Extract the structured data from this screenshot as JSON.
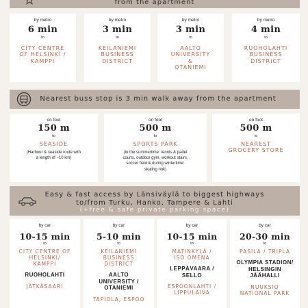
{
  "top_banner": {
    "text": "from the apartment"
  },
  "metro": [
    {
      "mode": "by metro",
      "time": "6 min",
      "to": "to",
      "dest": [
        "CITY CENTRE",
        "OF HELSINKI /",
        "KAMPPI"
      ]
    },
    {
      "mode": "by metro",
      "time": "3 min",
      "to": "to",
      "dest": [
        "KEILANIEMI",
        "BUSINESS",
        "DISTRICT"
      ]
    },
    {
      "mode": "by metro",
      "time": "3 min",
      "to": "to",
      "dest": [
        "AALTO",
        "UNIVERSITY",
        "&",
        "OTANIEMI"
      ]
    },
    {
      "mode": "by metro",
      "time": "4 min",
      "to": "to",
      "dest": [
        "RUOHOLAHTI",
        "BUSINESS",
        "DISTRICT"
      ]
    }
  ],
  "bus_banner": {
    "text": "Nearest buss stop is 3 min walk away from the apartment",
    "icon": "bus-wheel-icon"
  },
  "foot": [
    {
      "mode": "on foot",
      "time": "150 m",
      "to": "to",
      "dest": [
        "SEASIDE"
      ],
      "note": [
        "(Harbour & seaside route with",
        "a length of ~10 km)"
      ]
    },
    {
      "mode": "on foot",
      "time": "500 m",
      "to": "to",
      "dest": [
        "SPORTS PARK"
      ],
      "note": [
        "(in the summertime: tennis & padel",
        "courts, outdoor gym, workout stairs,",
        "soccer field & during wintertime:",
        "skating rink)"
      ]
    },
    {
      "mode": "on foot",
      "time": "500 m",
      "to": "to",
      "dest": [
        "NEAREST",
        "GROCERY STORE"
      ],
      "note": []
    }
  ],
  "car_banner": {
    "line1": "Easy & fast access by Länsiväylä to biggest highways",
    "line2": "to/from Turku, Hanko, Tampere & Lahti",
    "line3": "(+free & safe private parking space)",
    "icon": "car-icon"
  },
  "car": [
    {
      "mode": "by car",
      "time": "10-15 min",
      "to": "to",
      "groups": [
        {
          "style": "dest",
          "lines": [
            "CITY CENTRE OF",
            "HELSINKI/",
            "KAMPPI"
          ]
        },
        {
          "style": "black",
          "lines": [
            "RUOHOLAHTI"
          ]
        },
        {
          "style": "dest",
          "lines": [
            "JÄTKÄSAARI"
          ]
        }
      ]
    },
    {
      "mode": "by car",
      "time": "5-10 min",
      "to": "to",
      "groups": [
        {
          "style": "dest",
          "lines": [
            "KEILANIEMI",
            "BUSINESS",
            "DISTRICT"
          ]
        },
        {
          "style": "black",
          "lines": [
            "AALTO",
            "UNIVERSITY /",
            "OTANIEMI"
          ]
        },
        {
          "style": "dest",
          "lines": [
            "TAPIOLA, ESPOO"
          ]
        }
      ]
    },
    {
      "mode": "by car",
      "time": "10-15 min",
      "to": "to",
      "groups": [
        {
          "style": "dest",
          "lines": [
            "MATINKYLÄ /",
            "ISO OMENA"
          ]
        },
        {
          "style": "black",
          "lines": [
            "LEPPÄVAARA /",
            "SELLO"
          ]
        },
        {
          "style": "dest",
          "lines": [
            "ESPOONLAHTI /",
            "LIPPULAIVA"
          ]
        }
      ]
    },
    {
      "mode": "by car",
      "time": "20-30 min",
      "to": "to",
      "groups": [
        {
          "style": "dest",
          "lines": [
            "PASILA / TRIPLA"
          ]
        },
        {
          "style": "black",
          "lines": [
            "OLYMPIA STADION/",
            "HELSINGIN",
            "JÄÄHALLI"
          ]
        },
        {
          "style": "dest",
          "lines": [
            "NUUKSIO",
            "NATIONAL PARK"
          ]
        }
      ]
    }
  ],
  "colors": {
    "banner": "#bdb0a6",
    "accent": "#b5654a",
    "background": "#f5f2ee",
    "card": "#ffffff"
  }
}
